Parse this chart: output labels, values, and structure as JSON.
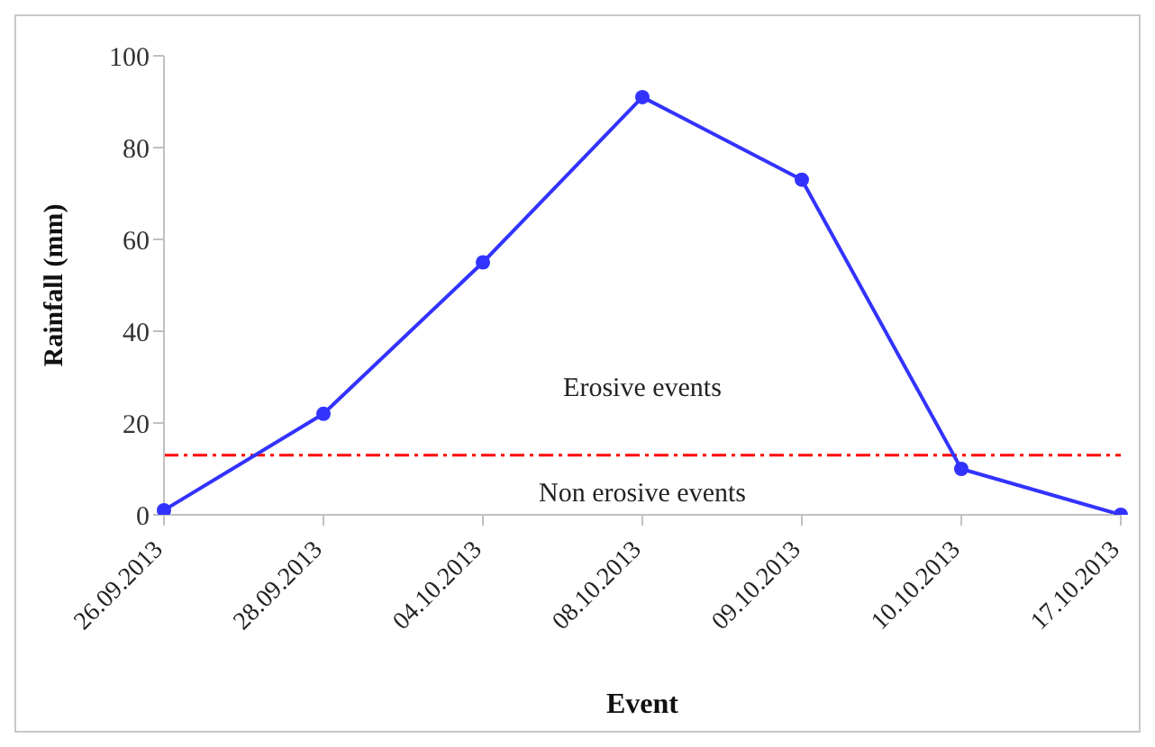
{
  "chart_data": {
    "type": "line",
    "xlabel": "Event",
    "ylabel": "Rainfall (mm)",
    "categories": [
      "26.09.2013",
      "28.09.2013",
      "04.10.2013",
      "08.10.2013",
      "09.10.2013",
      "10.10.2013",
      "17.10.2013"
    ],
    "series": [
      {
        "color": "#3333ff",
        "values": [
          1,
          22,
          55,
          91,
          73,
          10,
          0
        ]
      }
    ],
    "marker": "circle",
    "ylim": [
      0,
      100
    ],
    "yticks": [
      0,
      20,
      40,
      60,
      80,
      100
    ],
    "grid": false,
    "legend": false,
    "ref_lines": [
      {
        "axis": "y",
        "value": 13,
        "color": "#ff0000",
        "line_style": "dashdot"
      }
    ],
    "annotations": [
      "Erosive events",
      "Non erosive events"
    ]
  }
}
